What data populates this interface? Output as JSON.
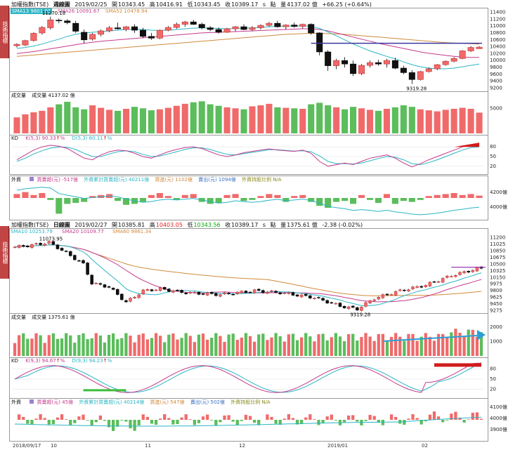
{
  "chart_data": [
    {
      "type": "candlestick",
      "title": "加權指數(TSE)",
      "period_label": "週線圖",
      "date": "2019/02/25",
      "open_label": "開",
      "open": "10343.45",
      "high_label": "高",
      "high": "10416.91",
      "low_label": "低",
      "low": "10343.45",
      "close_label": "收",
      "close": "10389.17",
      "unit_s": "s",
      "point_label": "點",
      "volume_label": "量",
      "volume": "4137.02 億",
      "change": "+66.25 (+0.64%)",
      "ma": [
        {
          "name": "SMA13",
          "value": "9801.01",
          "color": "#2ab5c4"
        },
        {
          "name": "SMA26",
          "value": "10091.67",
          "color": "#c43a8c"
        },
        {
          "name": "SMA52",
          "value": "10478.94",
          "color": "#d08a3c"
        }
      ],
      "ylim": [
        9150,
        11450
      ],
      "yticks": [
        9200,
        9400,
        9600,
        9800,
        10000,
        10200,
        10400,
        10600,
        10800,
        11000,
        11200,
        11400
      ],
      "annotations": [
        {
          "text": "11270.18"
        },
        {
          "text": "9319.28"
        }
      ],
      "candles": [
        [
          10430,
          10500,
          10380,
          10470
        ],
        [
          10450,
          10600,
          10420,
          10580
        ],
        [
          10580,
          10820,
          10550,
          10790
        ],
        [
          10800,
          11000,
          10750,
          10960
        ],
        [
          10950,
          11270,
          10900,
          11180
        ],
        [
          11170,
          11220,
          11080,
          11150
        ],
        [
          11150,
          11200,
          11050,
          11100
        ],
        [
          11080,
          11150,
          10800,
          10850
        ],
        [
          10820,
          10900,
          10500,
          10600
        ],
        [
          10620,
          10800,
          10580,
          10760
        ],
        [
          10760,
          10900,
          10700,
          10860
        ],
        [
          10860,
          11000,
          10820,
          10950
        ],
        [
          10950,
          11100,
          10900,
          10920
        ],
        [
          10900,
          11000,
          10850,
          10980
        ],
        [
          10980,
          11050,
          10800,
          10880
        ],
        [
          10880,
          10950,
          10650,
          10700
        ],
        [
          10700,
          10800,
          10600,
          10650
        ],
        [
          10650,
          10900,
          10620,
          10880
        ],
        [
          10880,
          11000,
          10850,
          10960
        ],
        [
          10960,
          11100,
          10920,
          11050
        ],
        [
          11050,
          11150,
          10980,
          11120
        ],
        [
          11120,
          11180,
          11030,
          11050
        ],
        [
          11050,
          11100,
          10900,
          10950
        ],
        [
          10950,
          11000,
          10850,
          10900
        ],
        [
          10900,
          10960,
          10780,
          10820
        ],
        [
          10820,
          10950,
          10800,
          10920
        ],
        [
          10920,
          11000,
          10850,
          10980
        ],
        [
          10980,
          11050,
          10880,
          10900
        ],
        [
          10900,
          11000,
          10850,
          10950
        ],
        [
          10950,
          11050,
          10900,
          11020
        ],
        [
          11020,
          11120,
          10980,
          11080
        ],
        [
          11080,
          11150,
          10950,
          10980
        ],
        [
          10980,
          11050,
          10900,
          11030
        ],
        [
          11030,
          11100,
          10950,
          10990
        ],
        [
          10990,
          11070,
          10930,
          11050
        ],
        [
          11050,
          11080,
          10750,
          10800
        ],
        [
          10800,
          10820,
          10150,
          10250
        ],
        [
          10250,
          10300,
          9700,
          9850
        ],
        [
          9850,
          10050,
          9750,
          10000
        ],
        [
          10000,
          10100,
          9800,
          9900
        ],
        [
          9900,
          10000,
          9550,
          9620
        ],
        [
          9620,
          9900,
          9580,
          9860
        ],
        [
          9860,
          10000,
          9800,
          9940
        ],
        [
          9940,
          10020,
          9850,
          9900
        ],
        [
          9900,
          10050,
          9800,
          10000
        ],
        [
          10000,
          10080,
          9750,
          9780
        ],
        [
          9780,
          9850,
          9600,
          9650
        ],
        [
          9650,
          9720,
          9319,
          9450
        ],
        [
          9450,
          9700,
          9420,
          9680
        ],
        [
          9680,
          9800,
          9650,
          9760
        ],
        [
          9760,
          9900,
          9720,
          9880
        ],
        [
          9880,
          10000,
          9850,
          9980
        ],
        [
          9980,
          10100,
          9950,
          10060
        ],
        [
          10060,
          10300,
          10040,
          10280
        ],
        [
          10280,
          10420,
          10250,
          10380
        ],
        [
          10343,
          10417,
          10343,
          10389
        ]
      ],
      "ma_lines": {
        "SMA13": [
          10350,
          10380,
          10420,
          10480,
          10550,
          10620,
          10700,
          10760,
          10800,
          10820,
          10840,
          10860,
          10880,
          10900,
          10910,
          10900,
          10880,
          10870,
          10880,
          10900,
          10920,
          10940,
          10950,
          10940,
          10930,
          10920,
          10930,
          10940,
          10950,
          10960,
          10980,
          10990,
          11000,
          11000,
          11010,
          10990,
          10930,
          10830,
          10720,
          10600,
          10480,
          10380,
          10280,
          10200,
          10120,
          10050,
          9960,
          9880,
          9820,
          9780,
          9760,
          9760,
          9780,
          9820,
          9860,
          9900
        ],
        "SMA26": [
          10200,
          10230,
          10260,
          10300,
          10340,
          10380,
          10420,
          10460,
          10500,
          10530,
          10560,
          10580,
          10600,
          10620,
          10640,
          10660,
          10680,
          10700,
          10720,
          10740,
          10760,
          10780,
          10800,
          10810,
          10820,
          10830,
          10840,
          10850,
          10860,
          10870,
          10880,
          10890,
          10900,
          10910,
          10920,
          10920,
          10900,
          10860,
          10800,
          10740,
          10680,
          10620,
          10560,
          10500,
          10450,
          10400,
          10350,
          10300,
          10250,
          10210,
          10180,
          10150,
          10120,
          10100,
          10090,
          10092
        ],
        "SMA52": [
          10120,
          10140,
          10160,
          10180,
          10200,
          10220,
          10240,
          10260,
          10280,
          10300,
          10320,
          10340,
          10360,
          10380,
          10400,
          10420,
          10440,
          10460,
          10480,
          10500,
          10520,
          10540,
          10560,
          10580,
          10600,
          10620,
          10640,
          10660,
          10680,
          10700,
          10720,
          10740,
          10760,
          10770,
          10780,
          10790,
          10790,
          10780,
          10770,
          10760,
          10740,
          10720,
          10700,
          10680,
          10660,
          10640,
          10620,
          10600,
          10580,
          10560,
          10540,
          10520,
          10510,
          10500,
          10490,
          10479
        ]
      },
      "volume_panel": {
        "label": "成交量",
        "sub_label": "成交量",
        "value": "4137.02",
        "unit": "億",
        "yticks": [
          5000
        ],
        "values": [
          3200,
          3800,
          4200,
          4500,
          5200,
          5800,
          6300,
          5200,
          4800,
          5600,
          5100,
          4700,
          4500,
          4900,
          5300,
          5000,
          4600,
          4800,
          5100,
          5500,
          5900,
          6200,
          6400,
          5800,
          5500,
          5200,
          5000,
          4800,
          5400,
          5600,
          5900,
          5200,
          5100,
          5000,
          4900,
          5800,
          6100,
          5600,
          5200,
          4800,
          5300,
          5000,
          4700,
          4500,
          4900,
          5200,
          5600,
          5300,
          4800,
          4600,
          4400,
          4700,
          4900,
          5100,
          4900,
          4137
        ],
        "up": [
          1,
          1,
          1,
          1,
          1,
          0,
          0,
          0,
          0,
          1,
          1,
          1,
          0,
          1,
          0,
          0,
          0,
          1,
          1,
          1,
          1,
          0,
          0,
          0,
          0,
          1,
          1,
          0,
          1,
          1,
          1,
          0,
          1,
          0,
          1,
          0,
          0,
          0,
          1,
          0,
          0,
          1,
          1,
          0,
          1,
          0,
          0,
          0,
          1,
          1,
          1,
          1,
          1,
          1,
          1,
          1
        ]
      },
      "kd_panel": {
        "label": "KD",
        "k_label": "K(5,3)",
        "k": "90.33",
        "d_label": "D(5,3)",
        "d": "80.11",
        "arrow": "↑",
        "percent": "%",
        "yticks": [
          80,
          50,
          20
        ],
        "k_values": [
          40,
          55,
          70,
          80,
          85,
          82,
          75,
          60,
          45,
          40,
          55,
          65,
          70,
          68,
          60,
          50,
          45,
          55,
          65,
          72,
          78,
          80,
          75,
          65,
          55,
          50,
          55,
          62,
          66,
          70,
          74,
          70,
          68,
          66,
          70,
          60,
          35,
          20,
          25,
          30,
          25,
          35,
          45,
          50,
          55,
          45,
          30,
          18,
          28,
          40,
          50,
          60,
          70,
          80,
          87,
          90
        ],
        "d_values": [
          35,
          45,
          58,
          68,
          76,
          80,
          79,
          72,
          60,
          50,
          50,
          58,
          65,
          68,
          65,
          57,
          50,
          52,
          58,
          65,
          72,
          77,
          77,
          72,
          64,
          57,
          55,
          59,
          63,
          67,
          71,
          71,
          69,
          67,
          68,
          65,
          52,
          35,
          28,
          28,
          27,
          30,
          37,
          44,
          50,
          48,
          40,
          28,
          25,
          31,
          40,
          50,
          60,
          70,
          78,
          80
        ]
      },
      "flow_panel": {
        "label": "外資",
        "items": [
          "買賣超(元) -517億",
          "外資累計買賣超(元) 40211億",
          "買進(元) 1102億",
          "賣出(元) 1094億",
          "外資持股比例 N/A"
        ],
        "yticks": [
          "4200億",
          "4000億"
        ],
        "bars": [
          20,
          30,
          15,
          25,
          -10,
          -80,
          -30,
          -25,
          -20,
          10,
          15,
          20,
          -15,
          -35,
          -30,
          -20,
          15,
          25,
          10,
          -10,
          15,
          20,
          -20,
          -30,
          -25,
          15,
          20,
          -15,
          -10,
          10,
          20,
          15,
          -20,
          10,
          15,
          -20,
          -40,
          -50,
          -20,
          -15,
          -30,
          15,
          -10,
          -25,
          20,
          -30,
          -15,
          -20,
          -10,
          10,
          15,
          20,
          25,
          15,
          20,
          12
        ],
        "cum": [
          4160,
          4170,
          4175,
          4180,
          4175,
          4140,
          4130,
          4120,
          4110,
          4115,
          4120,
          4125,
          4120,
          4105,
          4095,
          4085,
          4090,
          4100,
          4105,
          4100,
          4105,
          4110,
          4100,
          4090,
          4080,
          4085,
          4095,
          4090,
          4085,
          4090,
          4098,
          4104,
          4096,
          4100,
          4106,
          4096,
          4080,
          4060,
          4052,
          4046,
          4035,
          4040,
          4036,
          4028,
          4036,
          4026,
          4020,
          4012,
          4008,
          4012,
          4018,
          4026,
          4036,
          4042,
          4050,
          4055
        ]
      },
      "x_categories": [
        "2018/09/17",
        "10",
        "11",
        "12",
        "2019/01",
        "02"
      ]
    },
    {
      "type": "candlestick",
      "title": "加權指數(TSE)",
      "period_label": "日線圖",
      "date": "2019/02/27",
      "open_label": "開",
      "open": "10385.81",
      "high_label": "高",
      "high": "10403.05",
      "low_label": "低",
      "low": "10343.56",
      "close_label": "收",
      "close": "10389.17",
      "unit_s": "s",
      "point_label": "點",
      "volume_label": "量",
      "volume": "1375.61 億",
      "change": "-2.38 (-0.02%)",
      "ma": [
        {
          "name": "SMA10",
          "value": "10253.79",
          "color": "#2ab5c4"
        },
        {
          "name": "SMA20",
          "value": "10109.77",
          "color": "#c43a8c"
        },
        {
          "name": "SMA60",
          "value": "9861.34",
          "color": "#d08a3c"
        }
      ],
      "ylim": [
        9250,
        11300
      ],
      "yticks": [
        9275,
        9450,
        9625,
        9800,
        9975,
        10150,
        10325,
        10500,
        10675,
        10850,
        11025,
        11200
      ],
      "annotations": [
        {
          "text": "11073.95"
        },
        {
          "text": "9319.28"
        }
      ],
      "volume_panel": {
        "label": "成交量",
        "sub_label": "成交量",
        "value": "1375.61",
        "unit": "億",
        "yticks": [
          2000,
          1000
        ]
      },
      "kd_panel": {
        "label": "KD",
        "k_label": "K(9,3)",
        "k": "94.67",
        "d_label": "D(9,3)",
        "d": "94.23",
        "arrow": "↑",
        "percent": "%",
        "yticks": [
          80,
          50,
          20
        ]
      },
      "flow_panel": {
        "label": "外資",
        "items": [
          "買賣超(元) 45億",
          "外資累計買賣超(元) 40214億",
          "買進(元) 547億",
          "賣出(元) 502億",
          "外資持股比例 N/A"
        ],
        "yticks": [
          "4100億",
          "4000億",
          "3900億"
        ]
      },
      "x_categories": [
        "2018/09/17",
        "10",
        "11",
        "12",
        "2019/01",
        "02"
      ]
    }
  ],
  "side_tabs": [
    "技術指標",
    "技術指標"
  ]
}
